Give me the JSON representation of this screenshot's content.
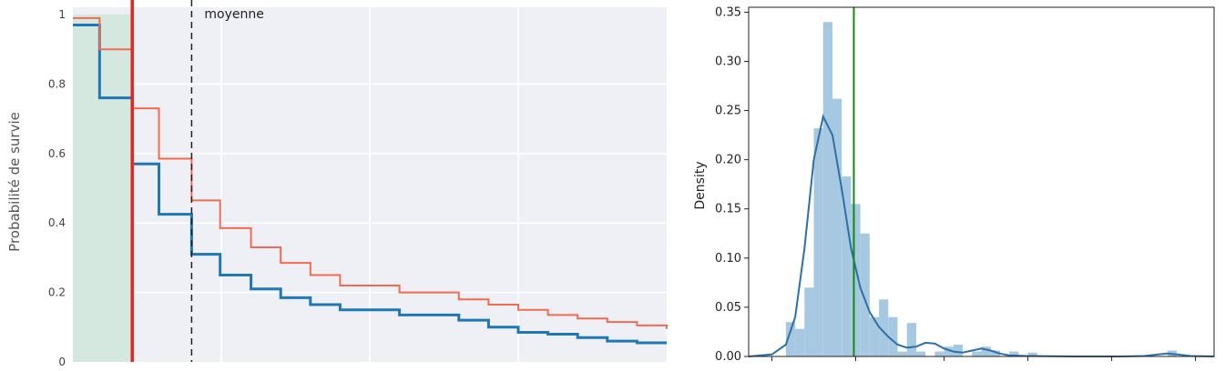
{
  "chart_data": [
    {
      "type": "line",
      "ylabel": "Probabilité de survie",
      "xlabel": "",
      "title": "",
      "ylim": [
        0,
        1.0
      ],
      "xlim": [
        0,
        1
      ],
      "y_ticks": [
        "0",
        "0.2",
        "0.4",
        "0.6",
        "0.8",
        "1"
      ],
      "step": true,
      "grid": true,
      "background": "#eff0f6",
      "series": [
        {
          "color": "#1f77b4",
          "x": [
            0.0,
            0.045,
            0.1,
            0.145,
            0.2,
            0.248,
            0.3,
            0.35,
            0.4,
            0.45,
            0.55,
            0.65,
            0.7,
            0.75,
            0.8,
            0.85,
            0.9,
            0.95,
            1.0
          ],
          "y": [
            0.97,
            0.76,
            0.57,
            0.425,
            0.31,
            0.25,
            0.21,
            0.185,
            0.165,
            0.15,
            0.135,
            0.12,
            0.1,
            0.085,
            0.08,
            0.07,
            0.06,
            0.055,
            0.055
          ]
        },
        {
          "color": "#f26b4f",
          "x": [
            0.0,
            0.045,
            0.1,
            0.145,
            0.2,
            0.248,
            0.3,
            0.35,
            0.4,
            0.45,
            0.55,
            0.65,
            0.7,
            0.75,
            0.8,
            0.85,
            0.9,
            0.95,
            1.0
          ],
          "y": [
            0.99,
            0.9,
            0.73,
            0.585,
            0.465,
            0.385,
            0.33,
            0.285,
            0.25,
            0.22,
            0.2,
            0.18,
            0.165,
            0.15,
            0.135,
            0.125,
            0.115,
            0.105,
            0.095
          ]
        }
      ],
      "shaded_region": {
        "x": [
          0,
          0.1
        ],
        "color": "#d5e8df"
      },
      "vertical_lines": [
        {
          "x": 0.1,
          "color": "#e8241c",
          "style": "solid"
        },
        {
          "x": 0.2,
          "color": "#222222",
          "style": "dashed",
          "label": "moyenne"
        }
      ]
    },
    {
      "type": "histogram",
      "ylabel": "Density",
      "xlabel": "",
      "title": "",
      "ylim": [
        0,
        0.355
      ],
      "xlim": [
        0,
        1
      ],
      "y_ticks": [
        "0.00",
        "0.05",
        "0.10",
        "0.15",
        "0.20",
        "0.25",
        "0.30",
        "0.35"
      ],
      "grid": false,
      "bar_color": "#a6c8e0",
      "kde_color": "#2d6fa8",
      "bins": [
        {
          "x": 0.08,
          "y": 0.035
        },
        {
          "x": 0.1,
          "y": 0.028
        },
        {
          "x": 0.12,
          "y": 0.07
        },
        {
          "x": 0.14,
          "y": 0.232
        },
        {
          "x": 0.16,
          "y": 0.34
        },
        {
          "x": 0.18,
          "y": 0.262
        },
        {
          "x": 0.2,
          "y": 0.183
        },
        {
          "x": 0.22,
          "y": 0.155
        },
        {
          "x": 0.24,
          "y": 0.125
        },
        {
          "x": 0.26,
          "y": 0.04
        },
        {
          "x": 0.28,
          "y": 0.058
        },
        {
          "x": 0.3,
          "y": 0.04
        },
        {
          "x": 0.32,
          "y": 0.005
        },
        {
          "x": 0.34,
          "y": 0.034
        },
        {
          "x": 0.36,
          "y": 0.005
        },
        {
          "x": 0.4,
          "y": 0.005
        },
        {
          "x": 0.42,
          "y": 0.01
        },
        {
          "x": 0.44,
          "y": 0.012
        },
        {
          "x": 0.48,
          "y": 0.005
        },
        {
          "x": 0.5,
          "y": 0.01
        },
        {
          "x": 0.52,
          "y": 0.006
        },
        {
          "x": 0.56,
          "y": 0.005
        },
        {
          "x": 0.6,
          "y": 0.004
        },
        {
          "x": 0.9,
          "y": 0.006
        }
      ],
      "bin_width": 0.02,
      "kde": {
        "x": [
          0.0,
          0.05,
          0.08,
          0.1,
          0.12,
          0.14,
          0.16,
          0.18,
          0.2,
          0.22,
          0.24,
          0.26,
          0.28,
          0.3,
          0.32,
          0.34,
          0.36,
          0.38,
          0.4,
          0.42,
          0.44,
          0.46,
          0.48,
          0.5,
          0.52,
          0.54,
          0.56,
          0.6,
          0.7,
          0.8,
          0.85,
          0.88,
          0.9,
          0.92,
          0.95,
          1.0
        ],
        "y": [
          0.0,
          0.002,
          0.012,
          0.04,
          0.11,
          0.2,
          0.244,
          0.225,
          0.17,
          0.11,
          0.07,
          0.045,
          0.03,
          0.02,
          0.012,
          0.009,
          0.01,
          0.014,
          0.013,
          0.008,
          0.005,
          0.004,
          0.006,
          0.008,
          0.006,
          0.003,
          0.001,
          0.0005,
          0.0,
          0.0,
          0.0005,
          0.002,
          0.003,
          0.002,
          0.0005,
          0.0
        ]
      },
      "vertical_lines": [
        {
          "x": 0.226,
          "color": "#138a13"
        }
      ]
    }
  ]
}
